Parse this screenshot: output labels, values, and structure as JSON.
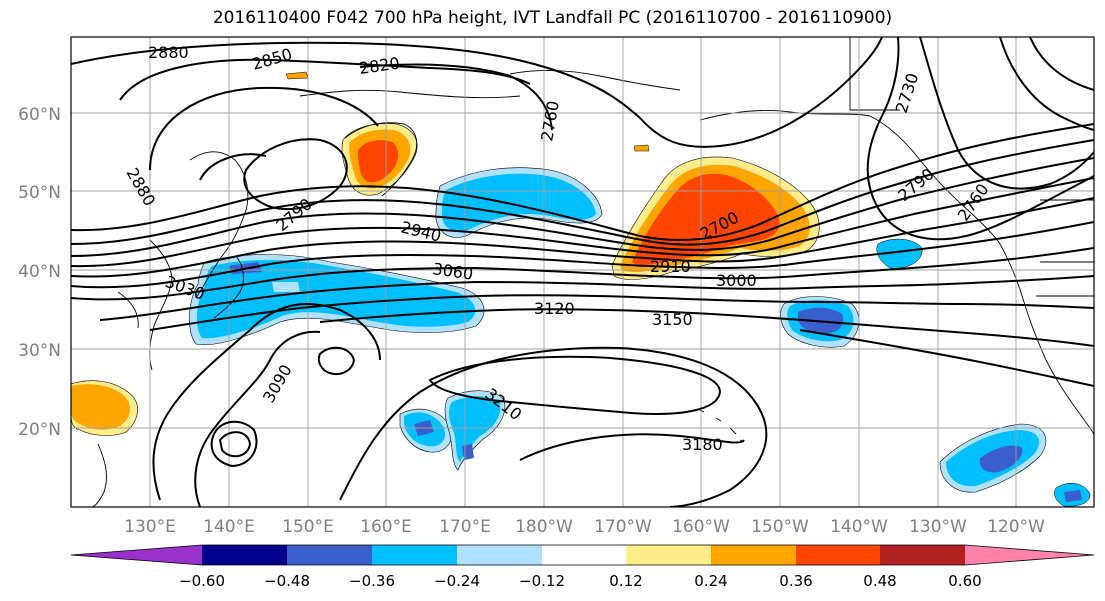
{
  "title": "2016110400 F042 700 hPa height, IVT Landfall PC (2016110700 - 2016110900)",
  "lat_labels": [
    "60°N",
    "50°N",
    "40°N",
    "30°N",
    "20°N"
  ],
  "lon_labels": [
    "130°E",
    "140°E",
    "150°E",
    "160°E",
    "170°E",
    "180°W",
    "170°W",
    "160°W",
    "150°W",
    "140°W",
    "130°W",
    "120°W"
  ],
  "contour_labels": {
    "c2880a": "2880",
    "c2850": "2850",
    "c2820": "2820",
    "c2760": "2760",
    "c2730": "2730",
    "c2880b": "2880",
    "c2790a": "2790",
    "c2790b": "2790",
    "c2940": "2940",
    "c2700": "2700",
    "c2910": "2910",
    "c3060": "3060",
    "c3030": "3030",
    "c3000": "3000",
    "c3120": "3120",
    "c3150": "3150",
    "c3090": "3090",
    "c3210": "3210",
    "c3180": "3180",
    "c2760b": "2760"
  },
  "colorbar": {
    "ticks": [
      "−0.60",
      "−0.48",
      "−0.36",
      "−0.24",
      "−0.12",
      "0.12",
      "0.24",
      "0.36",
      "0.48",
      "0.60"
    ],
    "colors": [
      "#9932cc",
      "#00008b",
      "#3a5fcd",
      "#00bfff",
      "#b0e2ff",
      "#ffffff",
      "#ffec8b",
      "#ffa500",
      "#ff4500",
      "#b22222",
      "#ff82ab"
    ]
  },
  "colors": {
    "pos1": "#ffec8b",
    "pos2": "#ffa500",
    "pos3": "#ff4500",
    "neg1": "#b0e2ff",
    "neg2": "#00bfff",
    "neg3": "#3a5fcd"
  }
}
